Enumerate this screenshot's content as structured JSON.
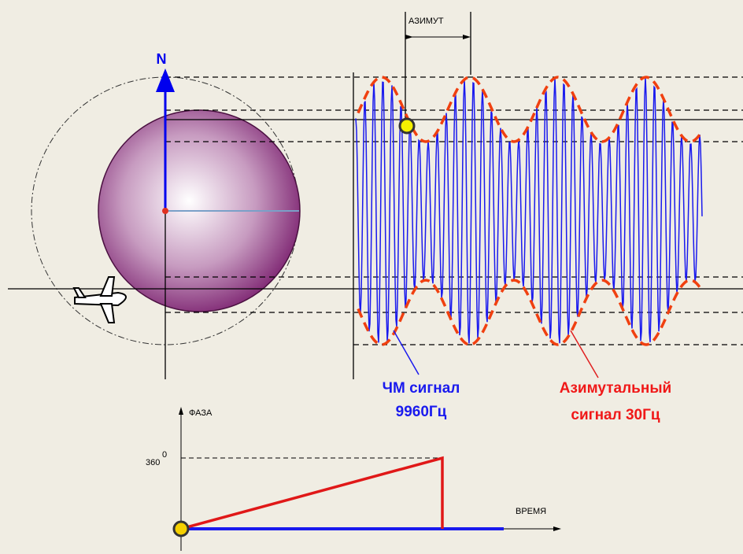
{
  "labels": {
    "azimuth": "АЗИМУТ",
    "north": "N",
    "fm_signal": {
      "line1": "ЧМ сигнал",
      "line2": "9960Гц"
    },
    "azimuth_signal": {
      "line1": "Азимутальный",
      "line2": "сигнал 30Гц"
    },
    "phase_axis": "ФАЗА",
    "phase_max": "360",
    "phase_max_sup": "0",
    "time_axis": "ВРЕМЯ"
  }
}
